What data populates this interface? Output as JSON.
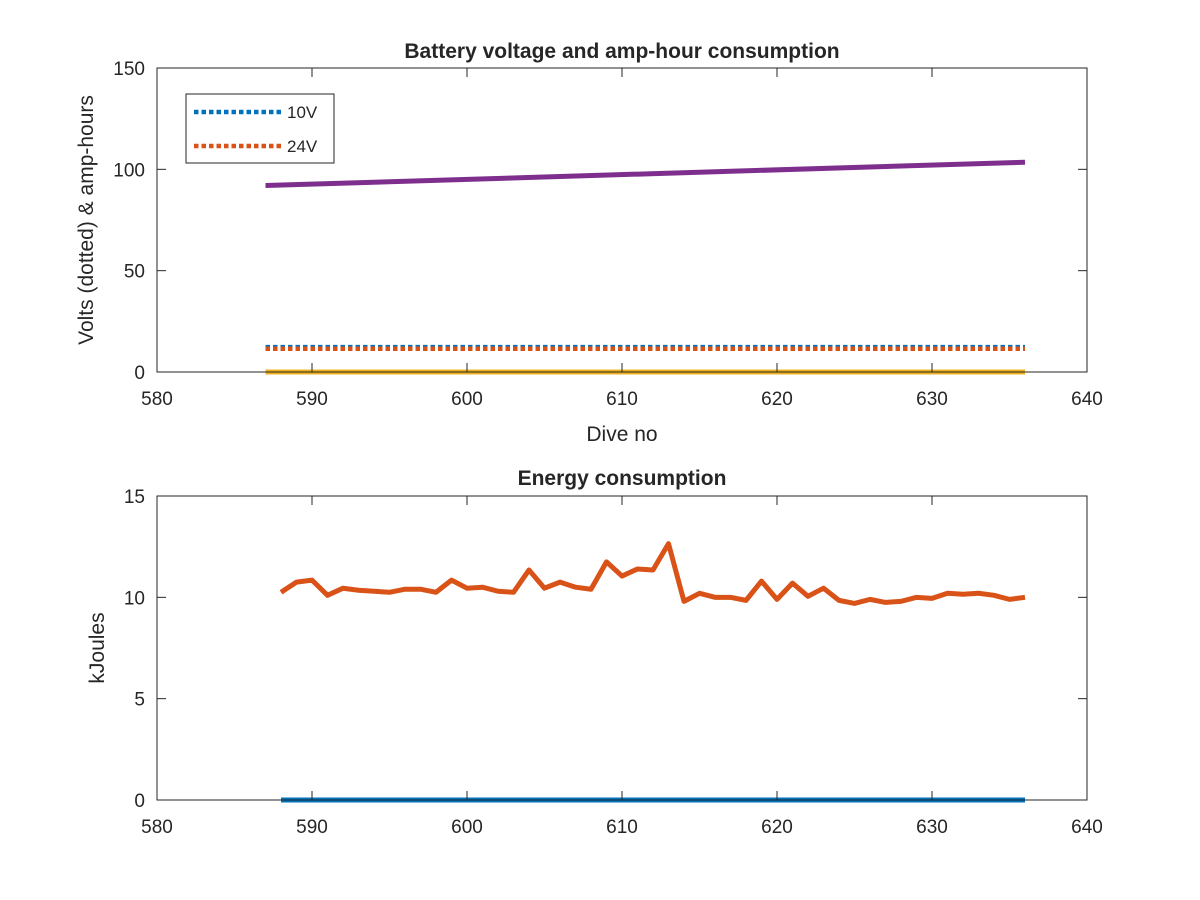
{
  "chart_data": [
    {
      "type": "line",
      "title": "Battery voltage and amp-hour consumption",
      "xlabel": "Dive no",
      "ylabel": "Volts (dotted) & amp-hours",
      "xlim": [
        580,
        640
      ],
      "ylim": [
        0,
        150
      ],
      "xticks": [
        "580",
        "590",
        "600",
        "610",
        "620",
        "630",
        "640"
      ],
      "yticks": [
        "0",
        "50",
        "100",
        "150"
      ],
      "legend_position": "top-left",
      "series": [
        {
          "name": "10V",
          "style": "dotted",
          "color": "#0072BD",
          "x": [
            587,
            636
          ],
          "y": [
            12.3,
            12.3
          ]
        },
        {
          "name": "24V",
          "style": "dotted",
          "color": "#D95319",
          "x": [
            587,
            636
          ],
          "y": [
            11.5,
            11.5
          ]
        },
        {
          "style": "solid",
          "color": "#EDB120",
          "x": [
            587,
            636
          ],
          "y": [
            0,
            0
          ]
        },
        {
          "style": "solid",
          "color": "#7E2F8E",
          "x": [
            587,
            636
          ],
          "y": [
            92,
            103.5
          ]
        }
      ]
    },
    {
      "type": "line",
      "title": "Energy consumption",
      "xlabel": "",
      "ylabel": "kJoules",
      "xlim": [
        580,
        640
      ],
      "ylim": [
        0,
        15
      ],
      "xticks": [
        "580",
        "590",
        "600",
        "610",
        "620",
        "630",
        "640"
      ],
      "yticks": [
        "0",
        "5",
        "10",
        "15"
      ],
      "series": [
        {
          "style": "solid",
          "color": "#0072BD",
          "x": [
            588,
            636
          ],
          "y": [
            0,
            0
          ]
        },
        {
          "style": "solid",
          "color": "#D95319",
          "x": [
            588,
            589,
            590,
            591,
            592,
            593,
            594,
            595,
            596,
            597,
            598,
            599,
            600,
            601,
            602,
            603,
            604,
            605,
            606,
            607,
            608,
            609,
            610,
            611,
            612,
            613,
            614,
            615,
            616,
            617,
            618,
            619,
            620,
            621,
            622,
            623,
            624,
            625,
            626,
            627,
            628,
            629,
            630,
            631,
            632,
            633,
            634,
            635,
            636
          ],
          "y": [
            10.25,
            10.75,
            10.85,
            10.1,
            10.45,
            10.35,
            10.3,
            10.25,
            10.4,
            10.4,
            10.25,
            10.85,
            10.45,
            10.5,
            10.3,
            10.25,
            11.35,
            10.45,
            10.75,
            10.5,
            10.4,
            11.75,
            11.05,
            11.4,
            11.35,
            12.65,
            9.8,
            10.2,
            10.0,
            10.0,
            9.85,
            10.8,
            9.9,
            10.7,
            10.05,
            10.45,
            9.85,
            9.7,
            9.9,
            9.75,
            9.8,
            10.0,
            9.95,
            10.2,
            10.15,
            10.2,
            10.1,
            9.9,
            10.0
          ]
        }
      ]
    }
  ]
}
